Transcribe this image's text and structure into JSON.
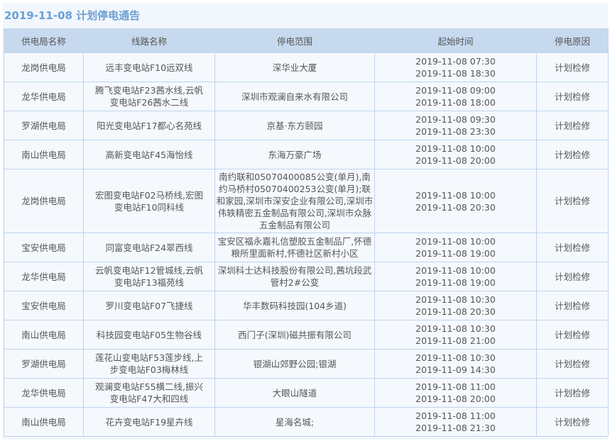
{
  "title": "2019-11-08  计划停电通告",
  "colors": {
    "title": "#6b9fd4",
    "header_bg": "#c6d9ee",
    "border": "#bfd4ec",
    "row_bg": "#f5f9fe"
  },
  "columns": [
    "供电局名称",
    "线路名称",
    "停电范围",
    "起始时间",
    "停电原因"
  ],
  "rows": [
    {
      "bureau": "龙岗供电局",
      "line": "远丰变电站F10远双线",
      "range": "深华业大厦",
      "start": "2019-11-08 07:30",
      "end": "2019-11-08 18:30",
      "reason": "计划检修"
    },
    {
      "bureau": "龙华供电局",
      "line": "腾飞变电站F23茜水线,云帆变电站F26茜水二线",
      "range": "深圳市观澜自来水有限公司",
      "start": "2019-11-08 09:00",
      "end": "2019-11-08 18:00",
      "reason": "计划检修"
    },
    {
      "bureau": "罗湖供电局",
      "line": "阳光变电站F17都心名苑线",
      "range": "京基·东方颐园",
      "start": "2019-11-08 09:30",
      "end": "2019-11-08 23:30",
      "reason": "计划检修"
    },
    {
      "bureau": "南山供电局",
      "line": "高新变电站F45海怡线",
      "range": "东海万豪广场",
      "start": "2019-11-08 10:00",
      "end": "2019-11-08 20:00",
      "reason": "计划检修"
    },
    {
      "bureau": "龙岗供电局",
      "line": "宏图变电站F02马桥线,宏图变电站F10同科线",
      "range": "南约联和05070400085公变(单月),南约马桥村05070400253公变(单月);联和家园,深圳市深安企业有限公司,深圳市伟轶精密五金制品有限公司,深圳市众脉五金制品有限公司",
      "start": "2019-11-08 10:00",
      "end": "2019-11-08 20:30",
      "reason": "计划检修"
    },
    {
      "bureau": "宝安供电局",
      "line": "同富变电站F24翠西线",
      "range": "宝安区福永嘉礼信塑胶五金制品厂,怀德粮所里面新村,怀德社区新村小区",
      "start": "2019-11-08 10:00",
      "end": "2019-11-08 19:00",
      "reason": "计划检修"
    },
    {
      "bureau": "龙华供电局",
      "line": "云帆变电站F12管城线,云帆变电站F13福苑线",
      "range": "深圳科士达科技股份有限公司,茜坑段武管村2#公变",
      "start": "2019-11-08 10:00",
      "end": "2019-11-08 19:00",
      "reason": "计划检修"
    },
    {
      "bureau": "宝安供电局",
      "line": "罗川变电站F07飞捷线",
      "range": "华丰数码科技园(104乡道)",
      "start": "2019-11-08 10:30",
      "end": "2019-11-08 20:30",
      "reason": "计划检修"
    },
    {
      "bureau": "南山供电局",
      "line": "科技园变电站F05生物谷线",
      "range": "西门子(深圳)磁共振有限公司",
      "start": "2019-11-08 10:30",
      "end": "2019-11-08 21:00",
      "reason": "计划检修"
    },
    {
      "bureau": "罗湖供电局",
      "line": "莲花山变电站F53莲步线,上步变电站F03梅林线",
      "range": "银湖山郊野公园;银湖",
      "start": "2019-11-08 10:30",
      "end": "2019-11-09 14:30",
      "reason": "计划检修"
    },
    {
      "bureau": "龙华供电局",
      "line": "观澜变电站F55横二线,振兴变电站F47大和四线",
      "range": "大眼山隧道",
      "start": "2019-11-08 11:00",
      "end": "2019-11-08 20:00",
      "reason": "计划检修"
    },
    {
      "bureau": "南山供电局",
      "line": "花卉变电站F19星卉线",
      "range": "星海名城;",
      "start": "2019-11-08 11:00",
      "end": "2019-11-08 21:30",
      "reason": "计划检修"
    }
  ]
}
